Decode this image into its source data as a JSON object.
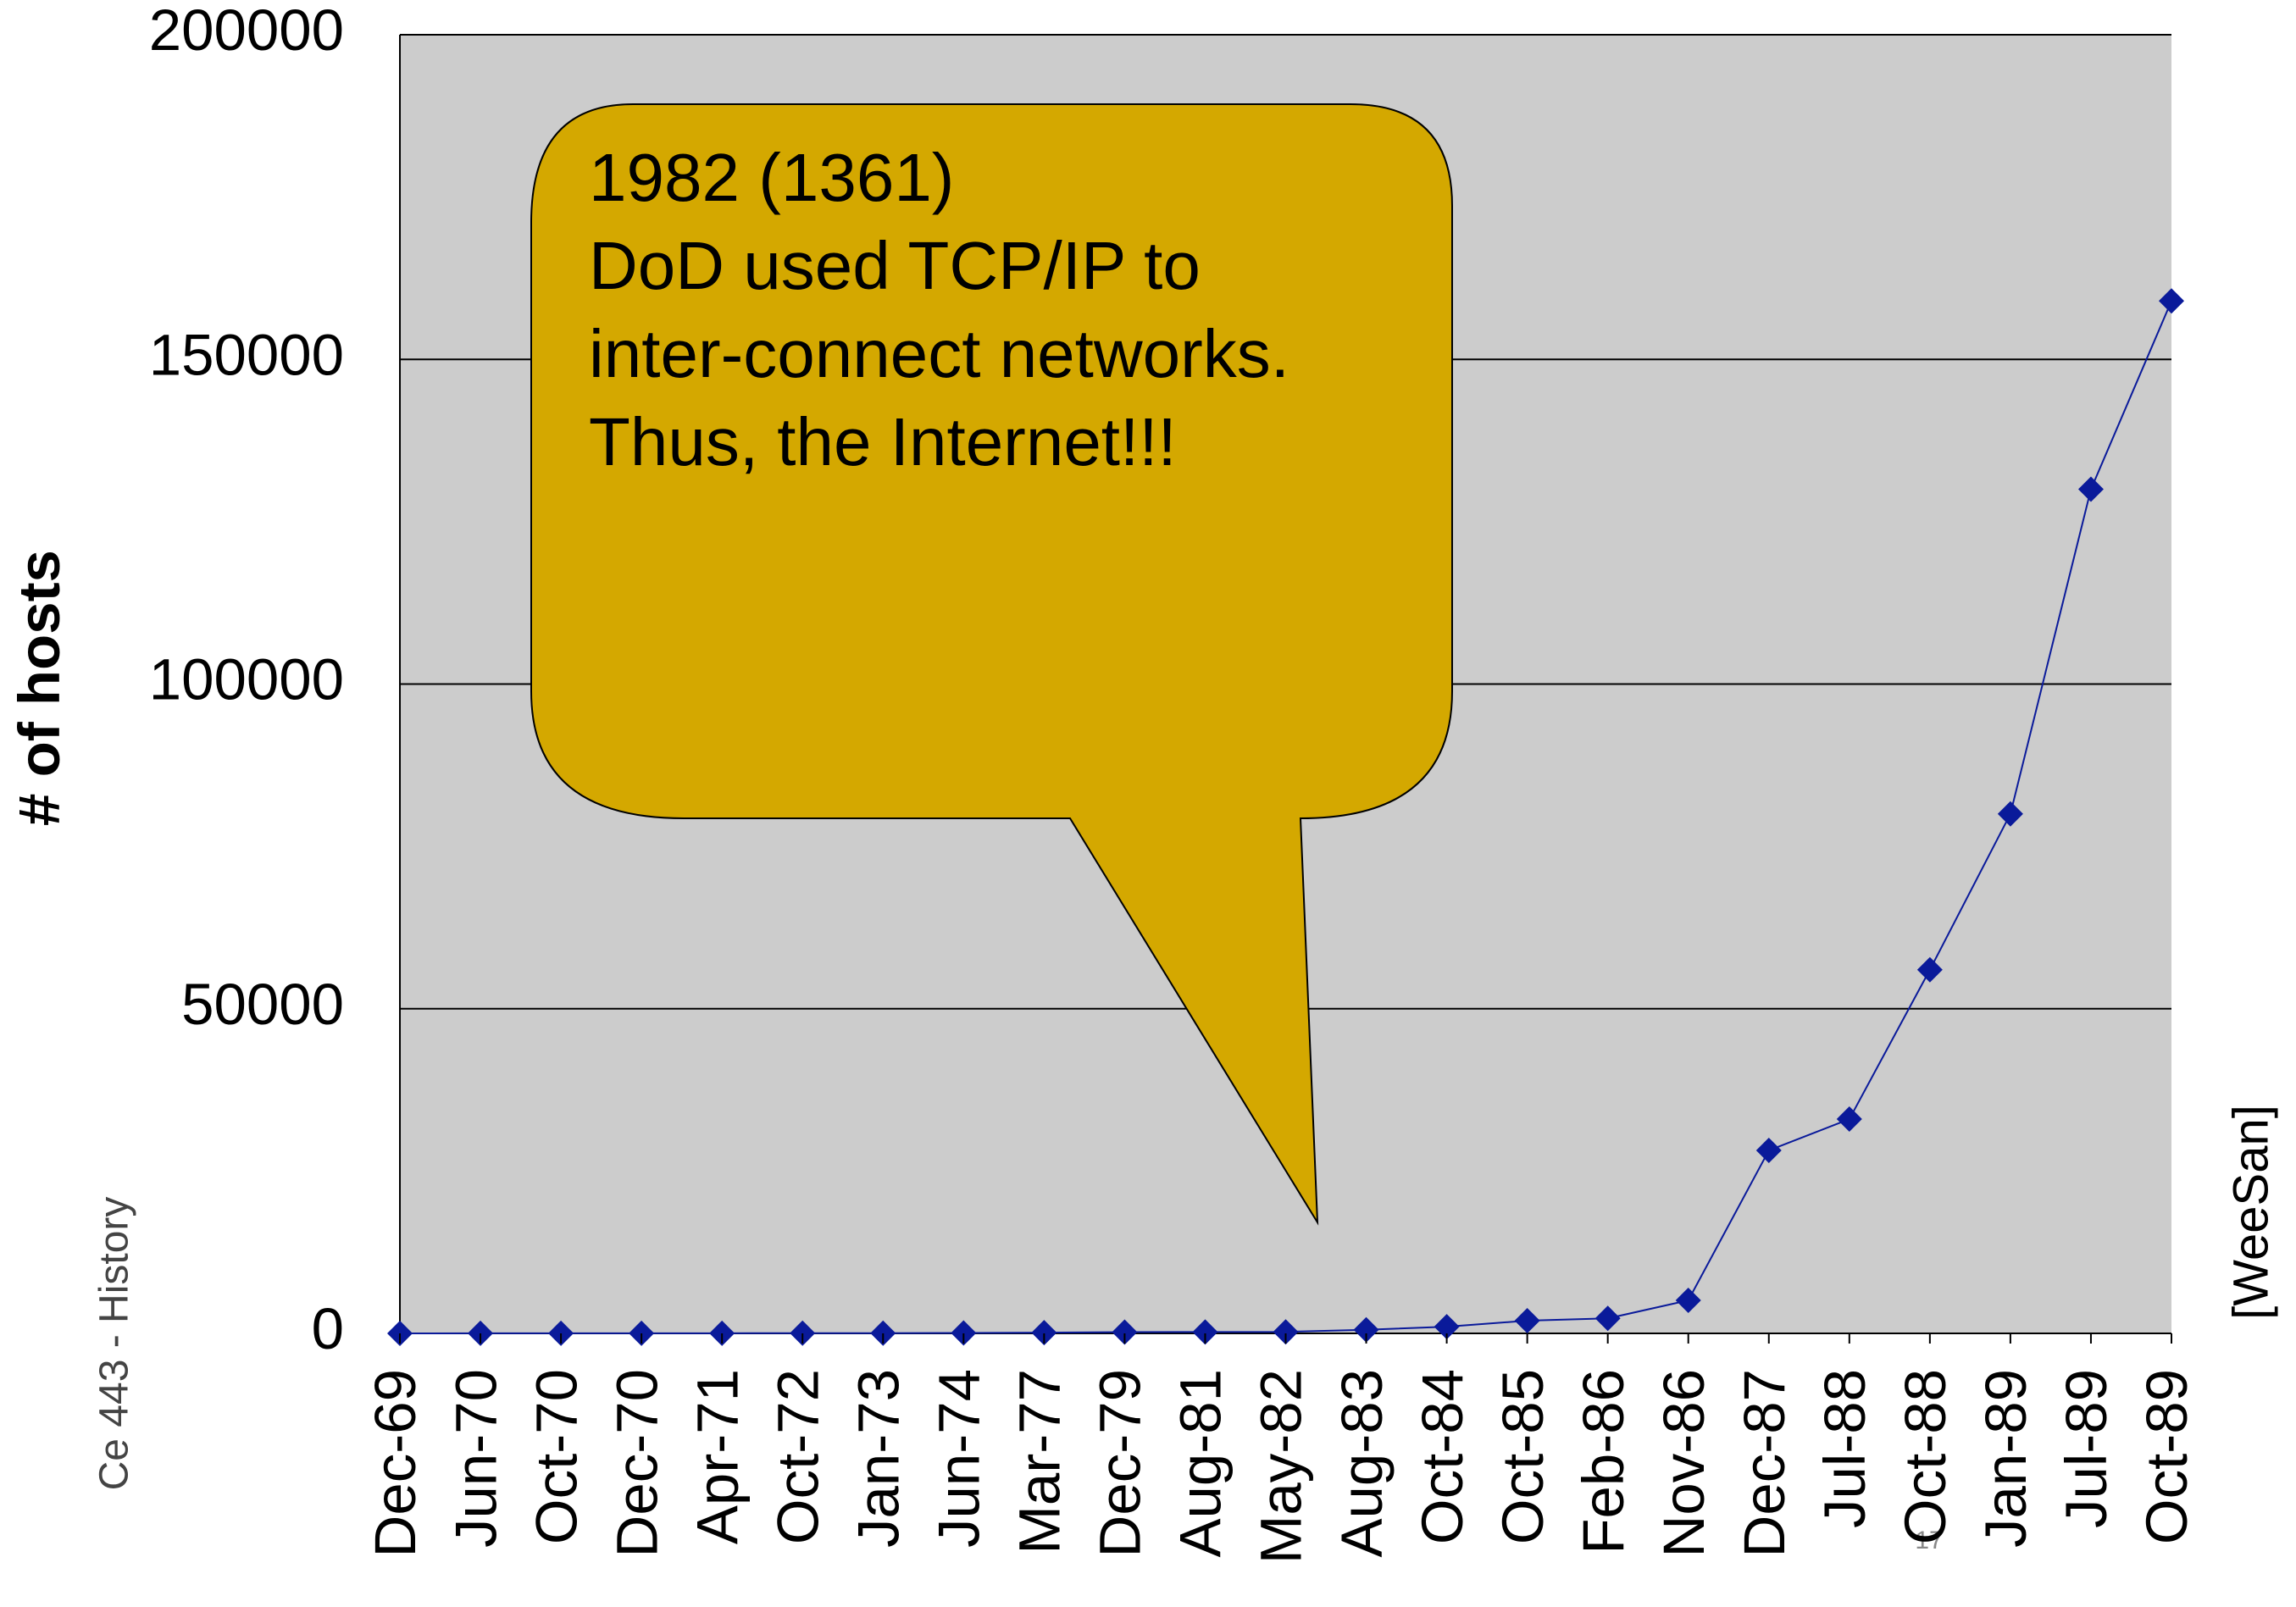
{
  "chart_data": {
    "type": "line",
    "ylabel": "# of hosts",
    "categories": [
      "Dec-69",
      "Jun-70",
      "Oct-70",
      "Dec-70",
      "Apr-71",
      "Oct-72",
      "Jan-73",
      "Jun-74",
      "Mar-77",
      "Dec-79",
      "Aug-81",
      "May-82",
      "Aug-83",
      "Oct-84",
      "Oct-85",
      "Feb-86",
      "Nov-86",
      "Dec-87",
      "Jul-88",
      "Oct-88",
      "Jan-89",
      "Jul-89",
      "Oct-89"
    ],
    "series": [
      {
        "name": "hosts",
        "color": "#0a1a9a",
        "values": [
          4,
          9,
          11,
          13,
          23,
          31,
          35,
          62,
          111,
          188,
          213,
          235,
          562,
          1024,
          1961,
          2308,
          5089,
          28174,
          33000,
          56000,
          80000,
          130000,
          159000
        ]
      }
    ],
    "ylim": [
      0,
      200000
    ],
    "yticks": [
      0,
      50000,
      100000,
      150000,
      200000
    ],
    "grid": true,
    "annotation": [
      "1982 (1361)",
      "DoD used TCP/IP to",
      "inter-connect networks.",
      "Thus, the Internet!!!"
    ]
  },
  "footer": {
    "course": "Ce 443 - History",
    "source": "[WeeSan]",
    "page": "17"
  }
}
